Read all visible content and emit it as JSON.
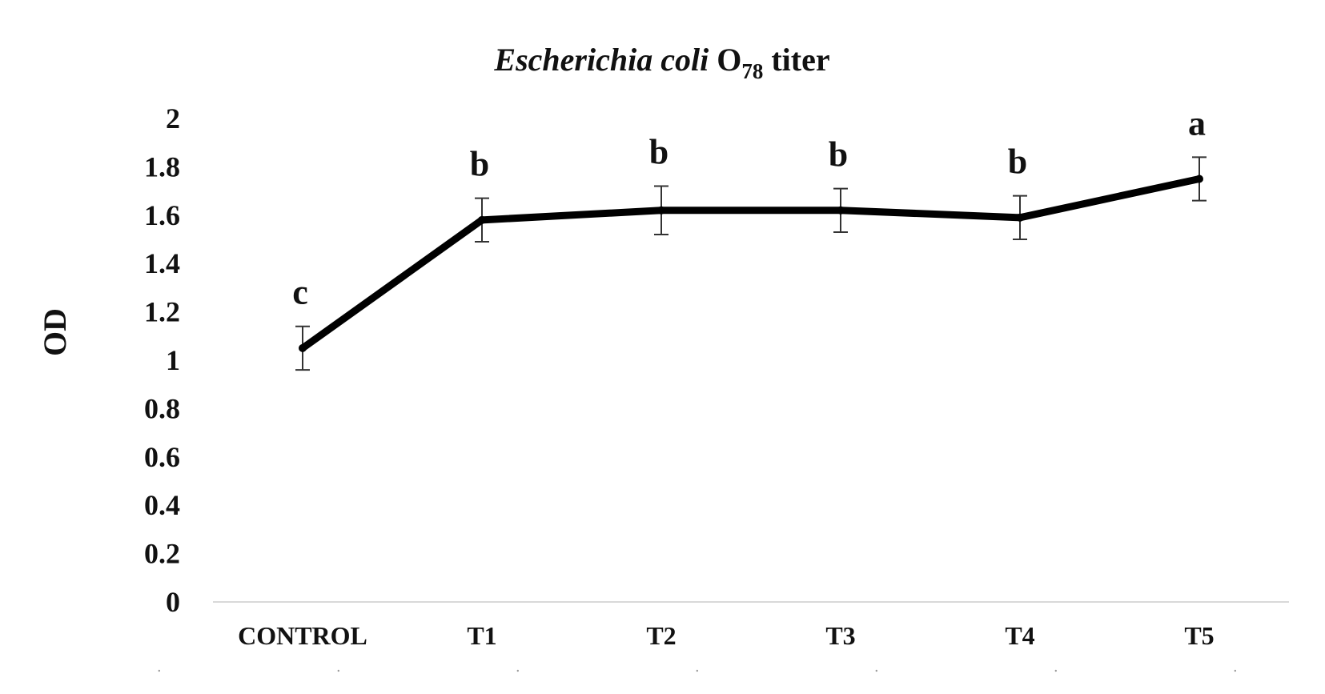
{
  "chart_data": {
    "type": "line",
    "title": {
      "italic_part": "Escherichia coli",
      "normal_part": "O",
      "subscript": "78",
      "suffix": "titer"
    },
    "xlabel": "",
    "ylabel": "OD",
    "ylim": [
      0,
      2
    ],
    "y_ticks": [
      "0",
      "0.2",
      "0.4",
      "0.6",
      "0.8",
      "1",
      "1.2",
      "1.4",
      "1.6",
      "1.8",
      "2"
    ],
    "categories": [
      "CONTROL",
      "T1",
      "T2",
      "T3",
      "T4",
      "T5"
    ],
    "series": [
      {
        "values": [
          1.05,
          1.58,
          1.62,
          1.62,
          1.59,
          1.75
        ],
        "errors": [
          0.09,
          0.09,
          0.1,
          0.09,
          0.09,
          0.09
        ],
        "color": "#000000"
      }
    ],
    "significance_letters": [
      "c",
      "b",
      "b",
      "b",
      "b",
      "a"
    ],
    "grid": false,
    "legend": "none"
  }
}
